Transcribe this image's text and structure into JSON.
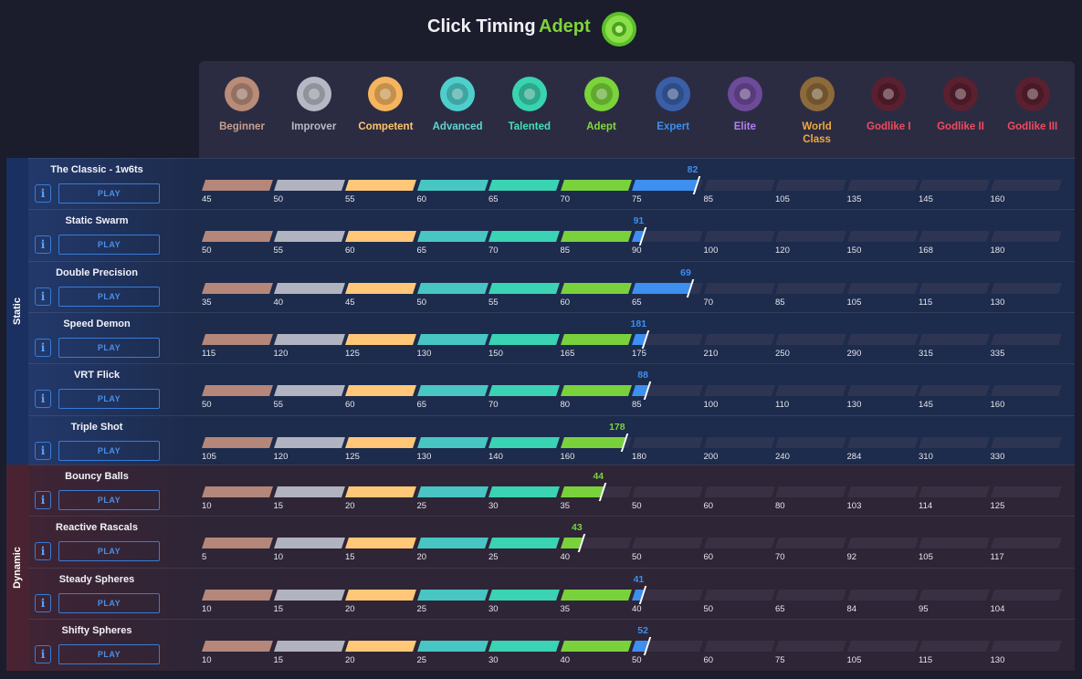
{
  "header": {
    "title": "Click Timing",
    "rank": "Adept",
    "rank_icon": "adept-gem-icon"
  },
  "ranks": [
    {
      "label": "Beginner",
      "color": "#c9a08e",
      "gem": "#b98c78",
      "icon": "beginner-gem-icon"
    },
    {
      "label": "Improver",
      "color": "#b9bac6",
      "gem": "#b6b8c4",
      "icon": "improver-gem-icon"
    },
    {
      "label": "Competent",
      "color": "#ffc46b",
      "gem": "#f5b45e",
      "icon": "competent-gem-icon"
    },
    {
      "label": "Advanced",
      "color": "#5ed6cf",
      "gem": "#4fcfcb",
      "icon": "advanced-gem-icon"
    },
    {
      "label": "Talented",
      "color": "#43e0b8",
      "gem": "#39d3b0",
      "icon": "talented-gem-icon"
    },
    {
      "label": "Adept",
      "color": "#84d93a",
      "gem": "#7ad33a",
      "icon": "adept-gem-icon"
    },
    {
      "label": "Expert",
      "color": "#3b8ff2",
      "gem": "#3a5fa8",
      "icon": "expert-gem-icon"
    },
    {
      "label": "Elite",
      "color": "#b47ff5",
      "gem": "#6d4a9a",
      "icon": "elite-gem-icon"
    },
    {
      "label": "World\nClass",
      "color": "#f0a83c",
      "gem": "#8c6a3a",
      "icon": "world-class-gem-icon"
    },
    {
      "label": "Godlike I",
      "color": "#f04a5e",
      "gem": "#5a2030",
      "icon": "godlike-1-gem-icon"
    },
    {
      "label": "Godlike II",
      "color": "#f04a5e",
      "gem": "#5a2030",
      "icon": "godlike-2-gem-icon"
    },
    {
      "label": "Godlike III",
      "color": "#f04a5e",
      "gem": "#5a2030",
      "icon": "godlike-3-gem-icon"
    }
  ],
  "segment_colors": [
    "#b4877a",
    "#b1b3c0",
    "#ffc777",
    "#48c6c3",
    "#3ad3b3",
    "#79d23c",
    "#3d8ff0"
  ],
  "sections": [
    {
      "label": "Static",
      "scenarios": [
        {
          "name": "The Classic - 1w6ts",
          "play": "PLAY",
          "info": "i",
          "score": "82",
          "ticks": [
            "45",
            "50",
            "55",
            "60",
            "65",
            "70",
            "75",
            "85",
            "105",
            "135",
            "145",
            "160"
          ],
          "fill_fraction": 0.575,
          "score_color": "#3d8ff0"
        },
        {
          "name": "Static Swarm",
          "play": "PLAY",
          "info": "i",
          "score": "91",
          "ticks": [
            "50",
            "55",
            "60",
            "65",
            "70",
            "85",
            "90",
            "100",
            "120",
            "150",
            "168",
            "180"
          ],
          "fill_fraction": 0.512,
          "score_color": "#3d8ff0"
        },
        {
          "name": "Double Precision",
          "play": "PLAY",
          "info": "i",
          "score": "69",
          "ticks": [
            "35",
            "40",
            "45",
            "50",
            "55",
            "60",
            "65",
            "70",
            "85",
            "105",
            "115",
            "130"
          ],
          "fill_fraction": 0.567,
          "score_color": "#3d8ff0"
        },
        {
          "name": "Speed Demon",
          "play": "PLAY",
          "info": "i",
          "score": "181",
          "ticks": [
            "115",
            "120",
            "125",
            "130",
            "150",
            "165",
            "175",
            "210",
            "250",
            "290",
            "315",
            "335"
          ],
          "fill_fraction": 0.515,
          "score_color": "#3d8ff0"
        },
        {
          "name": "VRT Flick",
          "play": "PLAY",
          "info": "i",
          "score": "88",
          "ticks": [
            "50",
            "55",
            "60",
            "65",
            "70",
            "80",
            "85",
            "100",
            "110",
            "130",
            "145",
            "160"
          ],
          "fill_fraction": 0.517,
          "score_color": "#3d8ff0"
        },
        {
          "name": "Triple Shot",
          "play": "PLAY",
          "info": "i",
          "score": "178",
          "ticks": [
            "105",
            "120",
            "125",
            "130",
            "140",
            "160",
            "180",
            "200",
            "240",
            "284",
            "310",
            "330"
          ],
          "fill_fraction": 0.49,
          "score_color": "#79d23c"
        }
      ]
    },
    {
      "label": "Dynamic",
      "scenarios": [
        {
          "name": "Bouncy Balls",
          "play": "PLAY",
          "info": "i",
          "score": "44",
          "ticks": [
            "10",
            "15",
            "20",
            "25",
            "30",
            "35",
            "50",
            "60",
            "80",
            "103",
            "114",
            "125"
          ],
          "fill_fraction": 0.465,
          "score_color": "#79d23c"
        },
        {
          "name": "Reactive Rascals",
          "play": "PLAY",
          "info": "i",
          "score": "43",
          "ticks": [
            "5",
            "10",
            "15",
            "20",
            "25",
            "40",
            "50",
            "60",
            "70",
            "92",
            "105",
            "117"
          ],
          "fill_fraction": 0.44,
          "score_color": "#79d23c"
        },
        {
          "name": "Steady Spheres",
          "play": "PLAY",
          "info": "i",
          "score": "41",
          "ticks": [
            "10",
            "15",
            "20",
            "25",
            "30",
            "35",
            "40",
            "50",
            "65",
            "84",
            "95",
            "104"
          ],
          "fill_fraction": 0.512,
          "score_color": "#3d8ff0"
        },
        {
          "name": "Shifty Spheres",
          "play": "PLAY",
          "info": "i",
          "score": "52",
          "ticks": [
            "10",
            "15",
            "20",
            "25",
            "30",
            "40",
            "50",
            "60",
            "75",
            "105",
            "115",
            "130"
          ],
          "fill_fraction": 0.517,
          "score_color": "#3d8ff0"
        }
      ]
    }
  ]
}
